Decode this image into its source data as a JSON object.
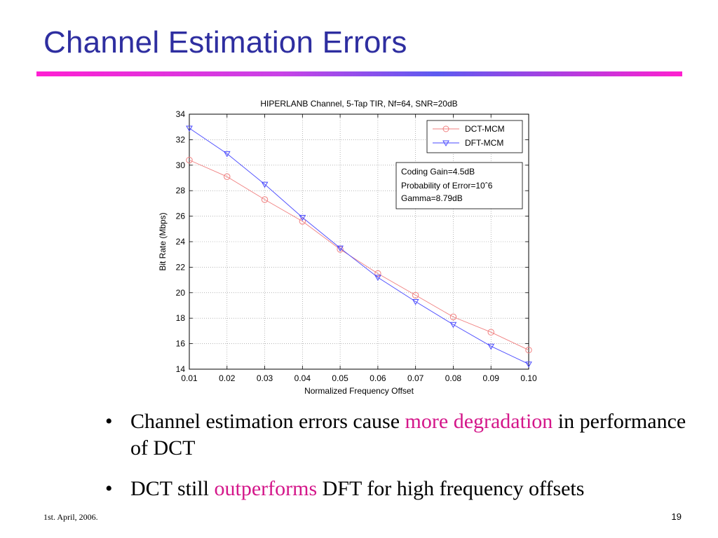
{
  "slide": {
    "title": "Channel Estimation Errors",
    "footer_date": "1st. April, 2006.",
    "page_number": "19",
    "accent_color": "#2e2ea0",
    "highlight_color": "#d4178a"
  },
  "bullets": [
    {
      "before": "Channel estimation errors cause ",
      "highlight": "more degradation",
      "after": " in performance of DCT"
    },
    {
      "before": "DCT still ",
      "highlight": "outperforms",
      "after": " DFT for high frequency offsets"
    }
  ],
  "chart_data": {
    "type": "line",
    "title": "HIPERLANB Channel, 5-Tap TIR, Nf=64, SNR=20dB",
    "xlabel": "Normalized Frequency Offset",
    "ylabel": "Bit Rate (Mbps)",
    "x": [
      0.01,
      0.02,
      0.03,
      0.04,
      0.05,
      0.06,
      0.07,
      0.08,
      0.09,
      0.1
    ],
    "x_tick_labels": [
      "0.01",
      "0.02",
      "0.03",
      "0.04",
      "0.05",
      "0.06",
      "0.07",
      "0.08",
      "0.09",
      "0.10"
    ],
    "xlim": [
      0.01,
      0.1
    ],
    "ylim": [
      14,
      34
    ],
    "y_ticks": [
      14,
      16,
      18,
      20,
      22,
      24,
      26,
      28,
      30,
      32,
      34
    ],
    "grid": true,
    "legend_position": "top-right",
    "series": [
      {
        "name": "DCT-MCM",
        "marker": "circle",
        "color": "#f08080",
        "values": [
          30.4,
          29.1,
          27.3,
          25.6,
          23.4,
          21.5,
          19.8,
          18.1,
          16.9,
          15.5
        ]
      },
      {
        "name": "DFT-MCM",
        "marker": "triangle-down",
        "color": "#4a4aff",
        "values": [
          32.9,
          30.9,
          28.5,
          25.9,
          23.5,
          21.2,
          19.3,
          17.5,
          15.8,
          14.4
        ]
      }
    ],
    "annotation": [
      "Coding Gain=4.5dB",
      "Probability of Error=10ˆ6",
      "Gamma=8.79dB"
    ]
  }
}
